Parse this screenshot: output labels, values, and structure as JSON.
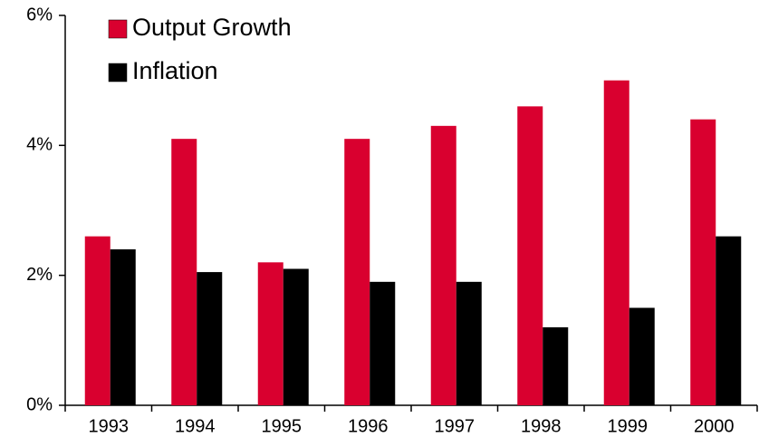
{
  "chart_data": {
    "type": "bar",
    "categories": [
      "1993",
      "1994",
      "1995",
      "1996",
      "1997",
      "1998",
      "1999",
      "2000"
    ],
    "series": [
      {
        "name": "Output Growth",
        "color": "#d9002f",
        "values": [
          2.6,
          4.1,
          2.2,
          4.1,
          4.3,
          4.6,
          5.0,
          4.4
        ]
      },
      {
        "name": "Inflation",
        "color": "#000000",
        "values": [
          2.4,
          2.05,
          2.1,
          1.9,
          1.9,
          1.2,
          1.5,
          2.6
        ]
      }
    ],
    "ylim": [
      0,
      6
    ],
    "yticks": [
      {
        "value": 0,
        "label": "0%"
      },
      {
        "value": 2,
        "label": "2%"
      },
      {
        "value": 4,
        "label": "4%"
      },
      {
        "value": 6,
        "label": "6%"
      }
    ],
    "legend": "upper left"
  }
}
